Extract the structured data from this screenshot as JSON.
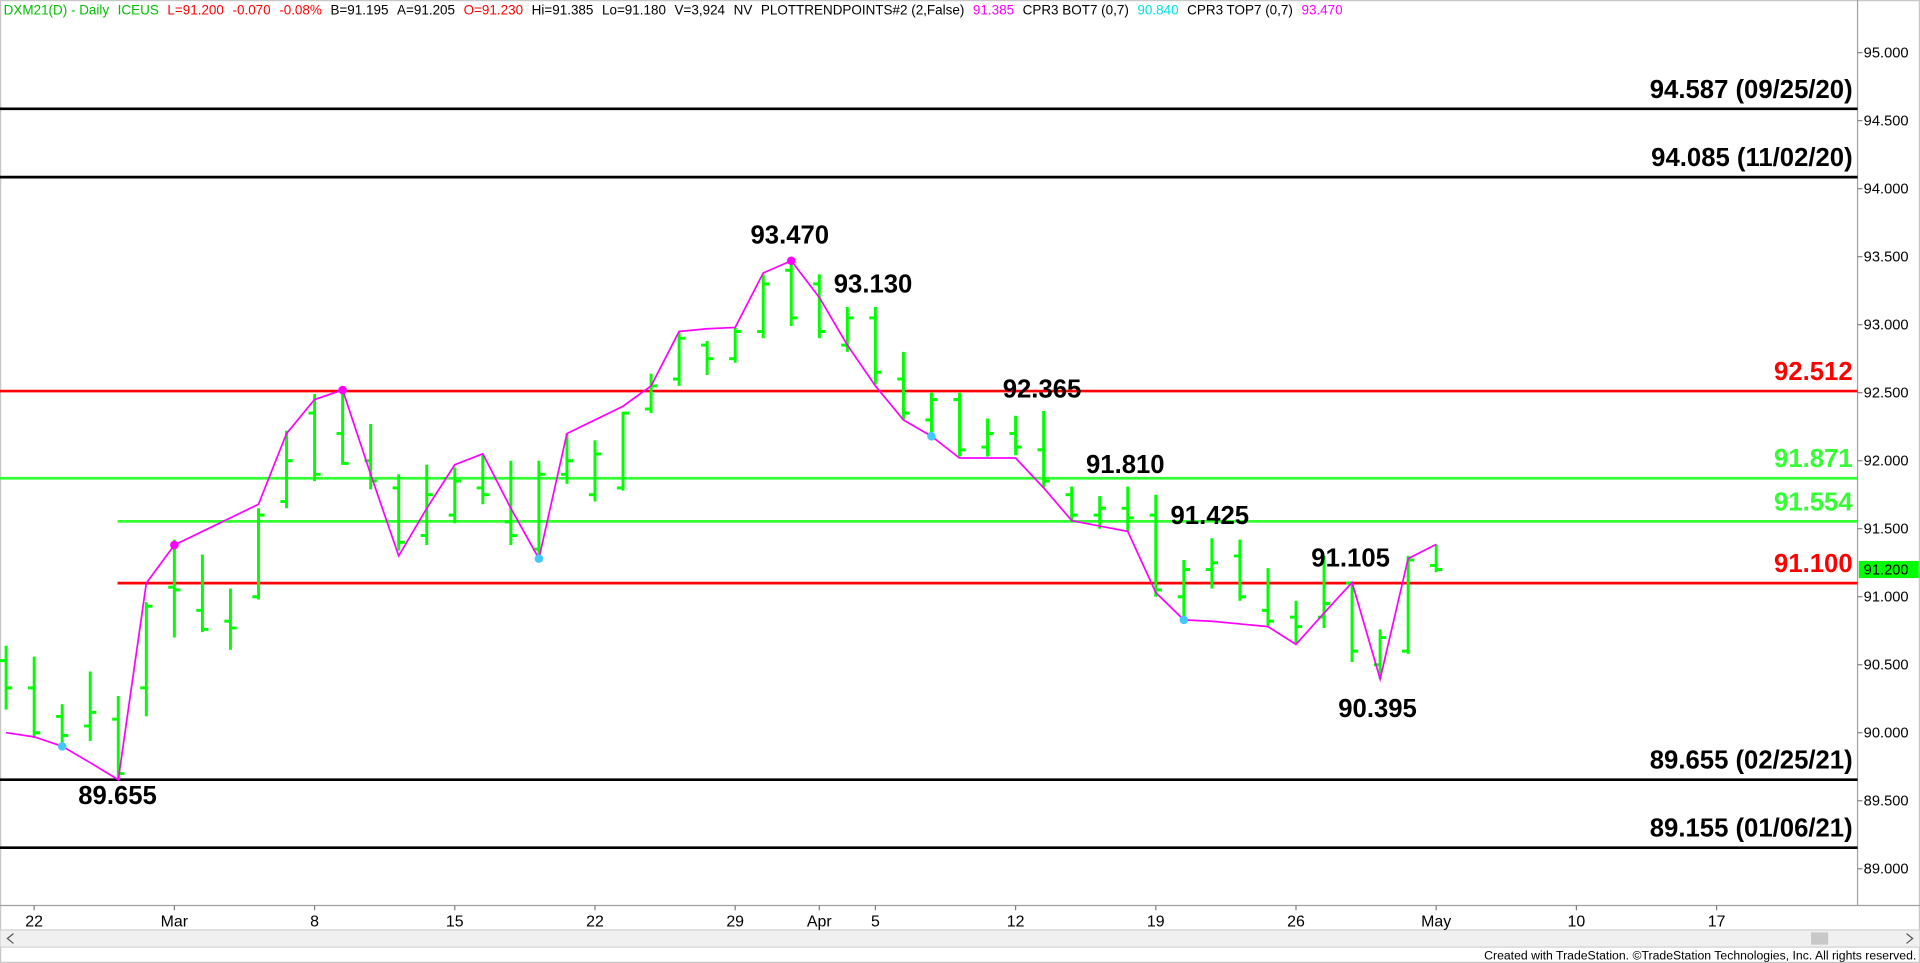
{
  "header": [
    {
      "text": "DXM21(D) - Daily",
      "color": "#00c000"
    },
    {
      "text": "ICEUS",
      "color": "#00c000"
    },
    {
      "text": "L=91.200",
      "color": "#ff0000"
    },
    {
      "text": "-0.070",
      "color": "#ff0000"
    },
    {
      "text": "-0.08%",
      "color": "#ff0000"
    },
    {
      "text": "B=91.195",
      "color": "#000000"
    },
    {
      "text": "A=91.205",
      "color": "#000000"
    },
    {
      "text": "O=91.230",
      "color": "#ff0000"
    },
    {
      "text": "Hi=91.385",
      "color": "#000000"
    },
    {
      "text": "Lo=91.180",
      "color": "#000000"
    },
    {
      "text": "V=3,924",
      "color": "#000000"
    },
    {
      "text": "NV",
      "color": "#000000"
    },
    {
      "text": "PLOTTRENDPOINTS#2 (2,False)",
      "color": "#000000"
    },
    {
      "text": "91.385",
      "color": "#ff00ff"
    },
    {
      "text": "CPR3 BOT7 (0,7)",
      "color": "#000000"
    },
    {
      "text": "90.840",
      "color": "#00e0e0"
    },
    {
      "text": "CPR3 TOP7 (0,7)",
      "color": "#000000"
    },
    {
      "text": "93.470",
      "color": "#ff00ff"
    }
  ],
  "footer": "Created with TradeStation. ©TradeStation Technologies, Inc. All rights reserved.",
  "chart_data": {
    "type": "ohlc",
    "color": "#00ff00",
    "categories": [
      null,
      "22",
      null,
      null,
      null,
      null,
      "Mar",
      null,
      null,
      null,
      null,
      "8",
      null,
      null,
      null,
      null,
      "15",
      null,
      null,
      null,
      null,
      "22",
      null,
      null,
      null,
      null,
      "29",
      null,
      null,
      "Apr",
      null,
      "5",
      null,
      null,
      null,
      null,
      "12",
      null,
      null,
      null,
      null,
      "19",
      null,
      null,
      null,
      null,
      "26",
      null,
      null,
      null,
      null,
      "May",
      null,
      null,
      null,
      null,
      "10",
      null,
      null,
      null,
      null,
      "17",
      null,
      null,
      null,
      null
    ],
    "open": [
      90.53,
      90.33,
      90.12,
      90.05,
      90.1,
      90.33,
      91.07,
      90.9,
      90.82,
      91.0,
      91.7,
      92.35,
      92.2,
      92.0,
      91.8,
      91.45,
      91.6,
      91.8,
      91.55,
      91.35,
      91.9,
      91.75,
      91.8,
      92.38,
      92.6,
      92.85,
      92.75,
      92.95,
      93.4,
      93.3,
      92.85,
      93.05,
      92.6,
      92.3,
      92.45,
      92.1,
      92.2,
      92.08,
      91.75,
      91.6,
      91.65,
      91.6,
      91.0,
      91.2,
      91.3,
      90.9,
      90.85,
      90.85,
      91.1,
      90.5,
      90.6,
      91.23,
      null,
      null,
      null,
      null,
      null,
      null,
      null,
      null,
      null,
      null,
      null,
      null,
      null,
      null
    ],
    "high": [
      90.64,
      90.56,
      90.21,
      90.45,
      90.27,
      90.96,
      91.42,
      91.31,
      91.06,
      91.65,
      92.22,
      92.49,
      92.53,
      92.27,
      91.9,
      91.97,
      91.95,
      92.05,
      92.0,
      92.0,
      92.2,
      92.15,
      92.36,
      92.64,
      92.95,
      92.88,
      92.98,
      93.37,
      93.47,
      93.37,
      93.13,
      93.13,
      92.8,
      92.5,
      92.5,
      92.31,
      92.33,
      92.365,
      91.81,
      91.74,
      91.81,
      91.75,
      91.27,
      91.43,
      91.42,
      91.21,
      90.97,
      91.3,
      91.105,
      90.76,
      91.3,
      91.385,
      null,
      null,
      null,
      null,
      null,
      null,
      null,
      null,
      null,
      null,
      null,
      null,
      null,
      null
    ],
    "low": [
      90.17,
      89.96,
      89.89,
      89.94,
      89.655,
      90.12,
      90.7,
      90.74,
      90.61,
      90.98,
      91.65,
      91.85,
      91.97,
      91.79,
      91.34,
      91.38,
      91.54,
      91.68,
      91.38,
      91.28,
      91.83,
      91.7,
      91.78,
      92.35,
      92.55,
      92.63,
      92.72,
      92.9,
      92.99,
      92.9,
      92.8,
      92.56,
      92.3,
      92.15,
      92.03,
      92.03,
      92.04,
      91.8,
      91.55,
      91.5,
      91.48,
      91.0,
      90.82,
      91.06,
      90.97,
      90.78,
      90.66,
      90.77,
      90.52,
      90.395,
      90.58,
      91.18,
      null,
      null,
      null,
      null,
      null,
      null,
      null,
      null,
      null,
      null,
      null,
      null,
      null,
      null
    ],
    "close": [
      90.33,
      90.0,
      89.98,
      90.15,
      89.7,
      90.93,
      91.05,
      90.76,
      90.77,
      91.6,
      92.0,
      91.9,
      91.98,
      91.85,
      91.4,
      91.75,
      91.85,
      91.75,
      91.45,
      91.9,
      92.0,
      92.05,
      92.35,
      92.55,
      92.9,
      92.75,
      92.95,
      93.3,
      93.05,
      92.95,
      93.05,
      92.65,
      92.35,
      92.45,
      92.08,
      92.2,
      92.1,
      91.85,
      91.6,
      91.65,
      91.58,
      91.05,
      91.2,
      91.25,
      91.0,
      90.82,
      90.78,
      90.95,
      90.6,
      90.7,
      91.27,
      91.2,
      null,
      null,
      null,
      null,
      null,
      null,
      null,
      null,
      null,
      null,
      null,
      null,
      null,
      null
    ],
    "trendline": {
      "color": "#ff00ff",
      "values": [
        90.0,
        89.97,
        89.9,
        89.78,
        89.655,
        91.1,
        91.38,
        91.48,
        91.58,
        91.68,
        92.2,
        92.45,
        92.52,
        91.9,
        91.3,
        91.65,
        91.97,
        92.05,
        91.65,
        91.28,
        92.2,
        92.3,
        92.4,
        92.55,
        92.95,
        92.97,
        92.98,
        93.38,
        93.47,
        93.2,
        92.85,
        92.55,
        92.3,
        92.18,
        92.02,
        92.02,
        92.02,
        91.8,
        91.56,
        91.52,
        91.48,
        91.03,
        90.83,
        90.82,
        90.8,
        90.78,
        90.65,
        90.88,
        91.105,
        90.395,
        91.28,
        91.385,
        null,
        null,
        null,
        null,
        null,
        null,
        null,
        null,
        null,
        null,
        null,
        null,
        null,
        null
      ]
    },
    "pivot_highs": {
      "color": "#ff00ff",
      "values": [
        null,
        null,
        null,
        null,
        null,
        null,
        91.38,
        null,
        null,
        null,
        null,
        null,
        92.52,
        null,
        null,
        null,
        null,
        null,
        null,
        null,
        null,
        null,
        null,
        null,
        null,
        null,
        null,
        null,
        93.47,
        null,
        null,
        null,
        null,
        null,
        null,
        null,
        null,
        null,
        null,
        null,
        null,
        null,
        null,
        null,
        null,
        null,
        null,
        null,
        null,
        null,
        null,
        null,
        null,
        null,
        null,
        null,
        null,
        null,
        null,
        null,
        null,
        null,
        null,
        null,
        null,
        null
      ]
    },
    "pivot_lows": {
      "color": "#40c8ff",
      "values": [
        null,
        null,
        89.9,
        null,
        null,
        null,
        null,
        null,
        null,
        null,
        null,
        null,
        null,
        null,
        null,
        null,
        null,
        null,
        null,
        91.28,
        null,
        null,
        null,
        null,
        null,
        null,
        null,
        null,
        null,
        null,
        null,
        null,
        null,
        92.18,
        null,
        null,
        null,
        null,
        null,
        null,
        null,
        null,
        90.83,
        null,
        null,
        null,
        null,
        null,
        null,
        null,
        null,
        null,
        null,
        null,
        null,
        null,
        null,
        null,
        null,
        null,
        null,
        null,
        null,
        null,
        null,
        null
      ]
    },
    "levels": [
      {
        "value": 94.587,
        "label": "94.587 (09/25/20)",
        "color": "#000000"
      },
      {
        "value": 94.085,
        "label": "94.085 (11/02/20)",
        "color": "#000000"
      },
      {
        "value": 92.512,
        "label": "92.512",
        "color": "#ff0000"
      },
      {
        "value": 91.871,
        "label": "91.871",
        "color": "#33ff33"
      },
      {
        "value": 91.554,
        "label": "91.554",
        "color": "#33ff33"
      },
      {
        "value": 91.1,
        "label": "91.100",
        "color": "#ff0000"
      },
      {
        "value": 89.655,
        "label": "89.655 (02/25/21)",
        "color": "#000000"
      },
      {
        "value": 89.155,
        "label": "89.155 (01/06/21)",
        "color": "#000000"
      }
    ],
    "annotations": [
      {
        "value": 89.655,
        "label": "89.655"
      },
      {
        "value": 93.47,
        "label": "93.470"
      },
      {
        "value": 93.13,
        "label": "93.130"
      },
      {
        "value": 92.365,
        "label": "92.365"
      },
      {
        "value": 91.81,
        "label": "91.810"
      },
      {
        "value": 91.425,
        "label": "91.425"
      },
      {
        "value": 91.105,
        "label": "91.105"
      },
      {
        "value": 90.395,
        "label": "90.395"
      }
    ],
    "last_price": {
      "value": 91.2,
      "label": "91.200",
      "color": "#00ff00"
    },
    "ylim": [
      88.73,
      95.387
    ],
    "yticks": [
      {
        "value": 89.0,
        "label": "89.000"
      },
      {
        "value": 89.5,
        "label": "89.500"
      },
      {
        "value": 90.0,
        "label": "90.000"
      },
      {
        "value": 90.5,
        "label": "90.500"
      },
      {
        "value": 91.0,
        "label": "91.000"
      },
      {
        "value": 91.5,
        "label": "91.500"
      },
      {
        "value": 92.0,
        "label": "92.000"
      },
      {
        "value": 92.5,
        "label": "92.500"
      },
      {
        "value": 93.0,
        "label": "93.000"
      },
      {
        "value": 93.5,
        "label": "93.500"
      },
      {
        "value": 94.0,
        "label": "94.000"
      },
      {
        "value": 94.5,
        "label": "94.500"
      },
      {
        "value": 95.0,
        "label": "95.000"
      }
    ]
  }
}
